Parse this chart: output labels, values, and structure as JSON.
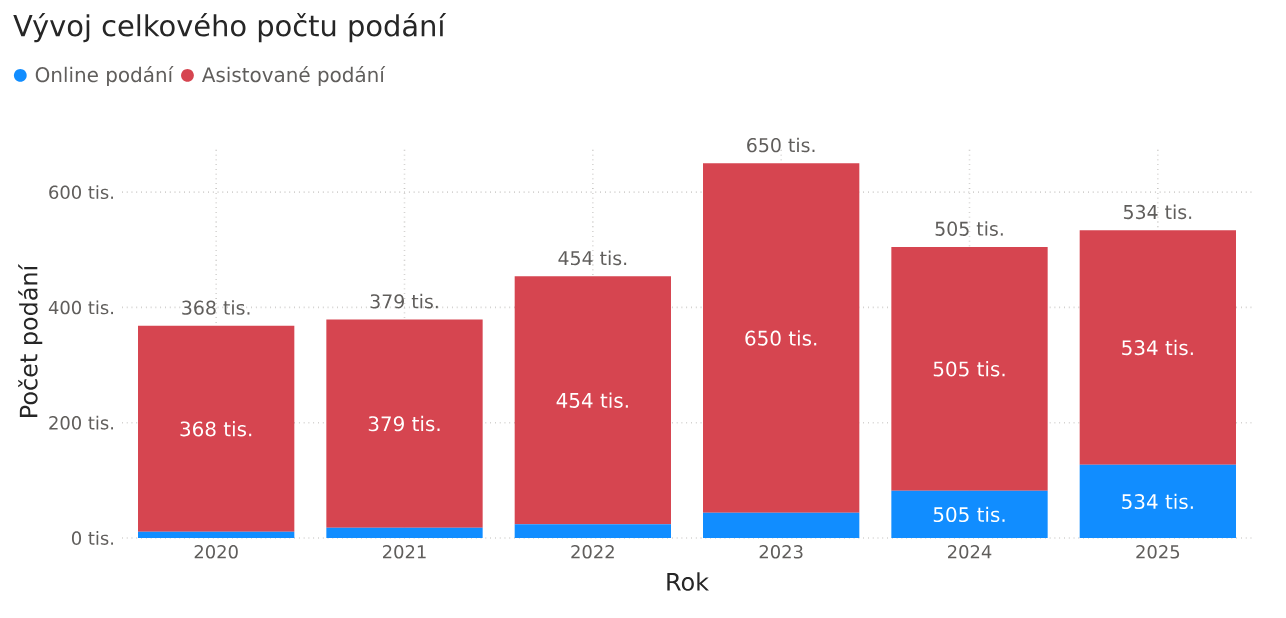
{
  "chart_data": {
    "type": "bar",
    "title": "Vývoj celkového počtu podání",
    "xlabel": "Rok",
    "ylabel": "Počet podání",
    "categories": [
      "2020",
      "2021",
      "2022",
      "2023",
      "2024",
      "2025"
    ],
    "series": [
      {
        "name": "Online podání",
        "color": "#118dff",
        "values": [
          11,
          18,
          24,
          44,
          82,
          127
        ]
      },
      {
        "name": "Asistované podání",
        "color": "#d64550",
        "values": [
          357,
          361,
          430,
          606,
          423,
          407
        ]
      }
    ],
    "totals": [
      "368 tis.",
      "379 tis.",
      "454 tis.",
      "650 tis.",
      "505 tis.",
      "534 tis."
    ],
    "annotations": [
      "368 tis.",
      "379 tis.",
      "454 tis.",
      "650 tis.",
      "505 tis.",
      "534 tis.",
      "505 tis.",
      "534 tis."
    ],
    "stacked": true,
    "ylim": [
      0,
      680
    ],
    "yticks": [
      {
        "value": 0,
        "label": "0 tis."
      },
      {
        "value": 200,
        "label": "200 tis."
      },
      {
        "value": 400,
        "label": "400 tis."
      },
      {
        "value": 600,
        "label": "600 tis."
      }
    ],
    "grid": true,
    "legend": "top left"
  }
}
